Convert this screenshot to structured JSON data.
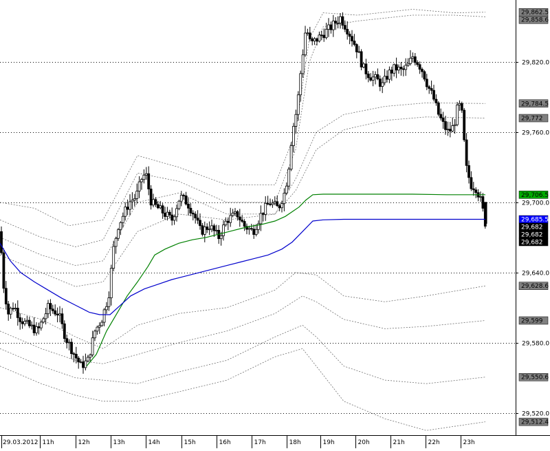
{
  "chart_data": {
    "type": "candlestick",
    "x_start_label": "29.03.2012",
    "x_tick_labels": [
      "11h",
      "12h",
      "13h",
      "14h",
      "15h",
      "16h",
      "17h",
      "18h",
      "19h",
      "20h",
      "21h",
      "22h",
      "23h"
    ],
    "y_range": [
      29501,
      29870
    ],
    "y_tick_values": [
      29520,
      29580,
      29640,
      29700,
      29760,
      29820
    ],
    "y_tick_labels": [
      "29,520.0",
      "29,580.0",
      "29,640.0",
      "29,700.0",
      "29,760.0",
      "29,820.0"
    ],
    "price_tags": [
      {
        "label": "29,862.5",
        "value": 29862.5,
        "color": "#808080",
        "text_color": "#000000"
      },
      {
        "label": "29,858.6",
        "value": 29858.6,
        "color": "#808080",
        "text_color": "#000000"
      },
      {
        "label": "29,784.5",
        "value": 29784.5,
        "color": "#808080",
        "text_color": "#000000"
      },
      {
        "label": "29,772",
        "value": 29772,
        "color": "#808080",
        "text_color": "#000000"
      },
      {
        "label": "29,706.5",
        "value": 29706.5,
        "color": "#00aa00",
        "text_color": "#000000"
      },
      {
        "label": "29,685.5",
        "value": 29685.5,
        "color": "#0000ff",
        "text_color": "#ffffff"
      },
      {
        "label": "29,682",
        "value": 29682,
        "color": "#000000",
        "text_color": "#ffffff"
      },
      {
        "label": "29,682",
        "value": 29682,
        "color": "#000000",
        "text_color": "#ffffff"
      },
      {
        "label": "29,682",
        "value": 29682,
        "color": "#000000",
        "text_color": "#ffffff"
      },
      {
        "label": "29,628.6",
        "value": 29628.6,
        "color": "#808080",
        "text_color": "#000000"
      },
      {
        "label": "29,599",
        "value": 29599,
        "color": "#808080",
        "text_color": "#000000"
      },
      {
        "label": "29,550.6",
        "value": 29550.6,
        "color": "#808080",
        "text_color": "#000000"
      },
      {
        "label": "29,512.4",
        "value": 29512.4,
        "color": "#808080",
        "text_color": "#000000"
      }
    ],
    "colors": {
      "up": "#ffffff",
      "down": "#000000",
      "vwap_green": "#008000",
      "vwap_blue": "#0000cc",
      "bands": "#707070",
      "grid": "#000000"
    },
    "grid": "dotted-horizontal",
    "price_waypoints": [
      [
        0,
        29675
      ],
      [
        5,
        29630
      ],
      [
        12,
        29605
      ],
      [
        20,
        29612
      ],
      [
        30,
        29600
      ],
      [
        40,
        29595
      ],
      [
        55,
        29590
      ],
      [
        70,
        29610
      ],
      [
        85,
        29605
      ],
      [
        95,
        29585
      ],
      [
        108,
        29570
      ],
      [
        118,
        29560
      ],
      [
        128,
        29565
      ],
      [
        138,
        29590
      ],
      [
        148,
        29600
      ],
      [
        158,
        29620
      ],
      [
        165,
        29660
      ],
      [
        172,
        29680
      ],
      [
        180,
        29690
      ],
      [
        188,
        29700
      ],
      [
        198,
        29705
      ],
      [
        206,
        29720
      ],
      [
        212,
        29725
      ],
      [
        220,
        29700
      ],
      [
        230,
        29695
      ],
      [
        240,
        29690
      ],
      [
        250,
        29685
      ],
      [
        262,
        29705
      ],
      [
        272,
        29700
      ],
      [
        282,
        29690
      ],
      [
        292,
        29675
      ],
      [
        305,
        29680
      ],
      [
        318,
        29670
      ],
      [
        330,
        29685
      ],
      [
        345,
        29690
      ],
      [
        355,
        29680
      ],
      [
        368,
        29675
      ],
      [
        380,
        29690
      ],
      [
        392,
        29700
      ],
      [
        405,
        29695
      ],
      [
        415,
        29710
      ],
      [
        420,
        29730
      ],
      [
        425,
        29760
      ],
      [
        432,
        29780
      ],
      [
        438,
        29815
      ],
      [
        445,
        29850
      ],
      [
        452,
        29835
      ],
      [
        462,
        29840
      ],
      [
        472,
        29845
      ],
      [
        482,
        29850
      ],
      [
        495,
        29858
      ],
      [
        505,
        29848
      ],
      [
        512,
        29840
      ],
      [
        520,
        29830
      ],
      [
        528,
        29815
      ],
      [
        538,
        29808
      ],
      [
        548,
        29805
      ],
      [
        556,
        29800
      ],
      [
        565,
        29810
      ],
      [
        575,
        29815
      ],
      [
        585,
        29812
      ],
      [
        595,
        29818
      ],
      [
        600,
        29825
      ],
      [
        607,
        29820
      ],
      [
        615,
        29812
      ],
      [
        622,
        29800
      ],
      [
        630,
        29790
      ],
      [
        638,
        29775
      ],
      [
        646,
        29765
      ],
      [
        652,
        29760
      ],
      [
        660,
        29765
      ],
      [
        667,
        29785
      ],
      [
        672,
        29775
      ],
      [
        678,
        29730
      ],
      [
        685,
        29715
      ],
      [
        693,
        29712
      ],
      [
        700,
        29700
      ],
      [
        706,
        29682
      ]
    ],
    "vwap_green": [
      [
        126,
        29560
      ],
      [
        140,
        29570
      ],
      [
        155,
        29590
      ],
      [
        170,
        29605
      ],
      [
        185,
        29620
      ],
      [
        200,
        29632
      ],
      [
        215,
        29645
      ],
      [
        225,
        29655
      ],
      [
        240,
        29660
      ],
      [
        260,
        29665
      ],
      [
        280,
        29668
      ],
      [
        300,
        29670
      ],
      [
        320,
        29673
      ],
      [
        340,
        29676
      ],
      [
        360,
        29679
      ],
      [
        380,
        29681
      ],
      [
        400,
        29684
      ],
      [
        415,
        29688
      ],
      [
        425,
        29692
      ],
      [
        435,
        29696
      ],
      [
        445,
        29702
      ],
      [
        455,
        29706.5
      ],
      [
        470,
        29707
      ],
      [
        500,
        29707
      ],
      [
        550,
        29707
      ],
      [
        600,
        29707
      ],
      [
        650,
        29706.5
      ],
      [
        706,
        29706.5
      ]
    ],
    "vwap_blue": [
      [
        0,
        29665
      ],
      [
        15,
        29650
      ],
      [
        30,
        29640
      ],
      [
        50,
        29632
      ],
      [
        70,
        29625
      ],
      [
        90,
        29618
      ],
      [
        110,
        29612
      ],
      [
        130,
        29606
      ],
      [
        145,
        29604
      ],
      [
        160,
        29604
      ],
      [
        175,
        29612
      ],
      [
        190,
        29620
      ],
      [
        210,
        29626
      ],
      [
        230,
        29630
      ],
      [
        250,
        29634
      ],
      [
        270,
        29637
      ],
      [
        290,
        29640
      ],
      [
        310,
        29643
      ],
      [
        330,
        29646
      ],
      [
        350,
        29649
      ],
      [
        370,
        29652
      ],
      [
        390,
        29655
      ],
      [
        410,
        29660
      ],
      [
        425,
        29666
      ],
      [
        440,
        29675
      ],
      [
        455,
        29684
      ],
      [
        470,
        29685
      ],
      [
        500,
        29685.5
      ],
      [
        550,
        29685.5
      ],
      [
        600,
        29685.5
      ],
      [
        650,
        29685.5
      ],
      [
        706,
        29685.5
      ]
    ],
    "bands": [
      [
        [
          0,
          29700
        ],
        [
          50,
          29695
        ],
        [
          100,
          29680
        ],
        [
          150,
          29685
        ],
        [
          200,
          29740
        ],
        [
          260,
          29730
        ],
        [
          330,
          29715
        ],
        [
          400,
          29715
        ],
        [
          430,
          29760
        ],
        [
          450,
          29840
        ],
        [
          470,
          29862
        ],
        [
          520,
          29860
        ],
        [
          600,
          29865
        ],
        [
          660,
          29862
        ],
        [
          706,
          29862.5
        ]
      ],
      [
        [
          0,
          29685
        ],
        [
          60,
          29670
        ],
        [
          110,
          29662
        ],
        [
          150,
          29668
        ],
        [
          200,
          29725
        ],
        [
          260,
          29718
        ],
        [
          330,
          29700
        ],
        [
          400,
          29700
        ],
        [
          430,
          29745
        ],
        [
          450,
          29820
        ],
        [
          470,
          29850
        ],
        [
          520,
          29855
        ],
        [
          600,
          29860
        ],
        [
          660,
          29860
        ],
        [
          706,
          29858.6
        ]
      ],
      [
        [
          0,
          29670
        ],
        [
          60,
          29655
        ],
        [
          110,
          29646
        ],
        [
          150,
          29650
        ],
        [
          200,
          29700
        ],
        [
          260,
          29708
        ],
        [
          330,
          29690
        ],
        [
          400,
          29690
        ],
        [
          430,
          29720
        ],
        [
          460,
          29760
        ],
        [
          500,
          29775
        ],
        [
          560,
          29782
        ],
        [
          620,
          29785
        ],
        [
          706,
          29784.5
        ]
      ],
      [
        [
          0,
          29655
        ],
        [
          60,
          29640
        ],
        [
          110,
          29628
        ],
        [
          150,
          29632
        ],
        [
          200,
          29675
        ],
        [
          260,
          29690
        ],
        [
          330,
          29685
        ],
        [
          400,
          29690
        ],
        [
          430,
          29710
        ],
        [
          460,
          29745
        ],
        [
          500,
          29762
        ],
        [
          560,
          29770
        ],
        [
          620,
          29773
        ],
        [
          706,
          29772
        ]
      ],
      [
        [
          0,
          29610
        ],
        [
          60,
          29600
        ],
        [
          110,
          29585
        ],
        [
          150,
          29575
        ],
        [
          200,
          29595
        ],
        [
          260,
          29605
        ],
        [
          330,
          29610
        ],
        [
          400,
          29625
        ],
        [
          430,
          29640
        ],
        [
          460,
          29638
        ],
        [
          500,
          29620
        ],
        [
          560,
          29615
        ],
        [
          620,
          29620
        ],
        [
          706,
          29628.6
        ]
      ],
      [
        [
          0,
          29590
        ],
        [
          60,
          29575
        ],
        [
          110,
          29565
        ],
        [
          150,
          29562
        ],
        [
          200,
          29570
        ],
        [
          260,
          29580
        ],
        [
          330,
          29590
        ],
        [
          400,
          29605
        ],
        [
          440,
          29620
        ],
        [
          460,
          29615
        ],
        [
          500,
          29600
        ],
        [
          560,
          29592
        ],
        [
          620,
          29594
        ],
        [
          706,
          29599
        ]
      ],
      [
        [
          0,
          29575
        ],
        [
          60,
          29560
        ],
        [
          110,
          29550
        ],
        [
          150,
          29548
        ],
        [
          200,
          29545
        ],
        [
          260,
          29555
        ],
        [
          330,
          29565
        ],
        [
          400,
          29585
        ],
        [
          440,
          29595
        ],
        [
          460,
          29585
        ],
        [
          500,
          29560
        ],
        [
          560,
          29548
        ],
        [
          620,
          29545
        ],
        [
          706,
          29550.6
        ]
      ],
      [
        [
          0,
          29560
        ],
        [
          60,
          29545
        ],
        [
          110,
          29535
        ],
        [
          150,
          29530
        ],
        [
          200,
          29530
        ],
        [
          260,
          29538
        ],
        [
          330,
          29548
        ],
        [
          400,
          29568
        ],
        [
          440,
          29575
        ],
        [
          460,
          29560
        ],
        [
          500,
          29530
        ],
        [
          560,
          29515
        ],
        [
          620,
          29505
        ],
        [
          706,
          29512.4
        ]
      ]
    ]
  }
}
